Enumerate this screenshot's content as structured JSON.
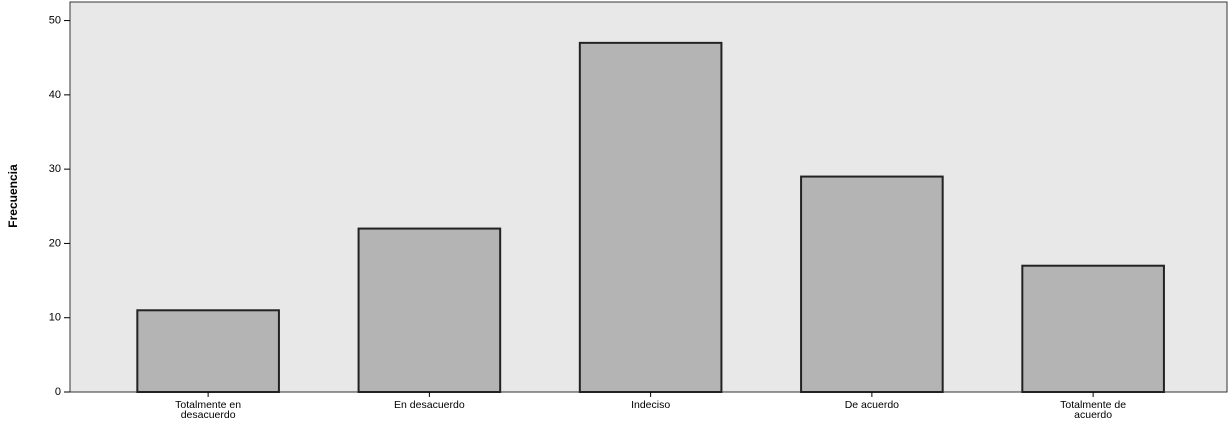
{
  "chart_data": {
    "type": "bar",
    "y_label": "Frecuencia",
    "categories": [
      "Totalmente en desacuerdo",
      "En desacuerdo",
      "Indeciso",
      "De acuerdo",
      "Totalmente de acuerdo"
    ],
    "values": [
      11,
      22,
      47,
      29,
      17
    ],
    "color": "#b4b4b4",
    "ylim": [
      0,
      52.5
    ],
    "yticks": [
      0,
      10,
      20,
      30,
      40,
      50
    ],
    "grid": false
  }
}
